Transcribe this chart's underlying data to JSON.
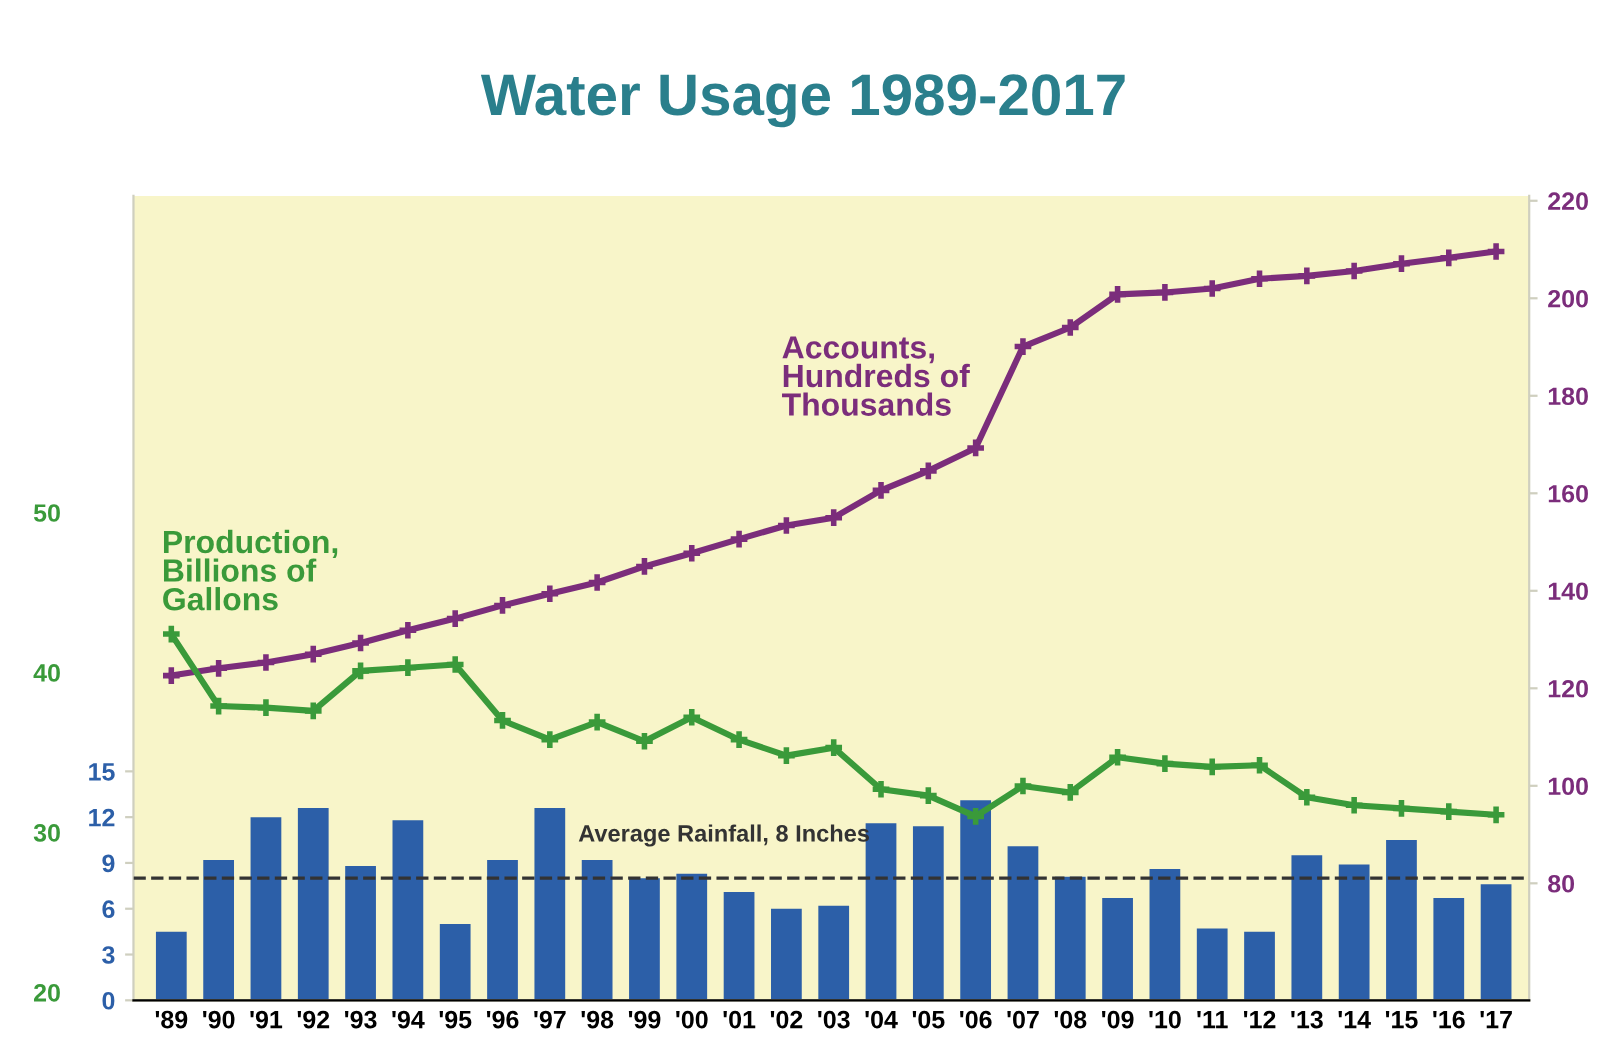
{
  "chart_data": {
    "type": "bar",
    "title": "Water Usage 1989-2017",
    "categories": [
      "'89",
      "'90",
      "'91",
      "'92",
      "'93",
      "'94",
      "'95",
      "'96",
      "'97",
      "'98",
      "'99",
      "'00",
      "'01",
      "'02",
      "'03",
      "'04",
      "'05",
      "'06",
      "'07",
      "'08",
      "'09",
      "'10",
      "'11",
      "'12",
      "'13",
      "'14",
      "'15",
      "'16",
      "'17"
    ],
    "series": [
      {
        "color": "#2c5fa8",
        "values": [
          4.5,
          9.2,
          12.0,
          12.6,
          8.8,
          11.8,
          5.0,
          9.2,
          12.6,
          9.2,
          8.0,
          8.3,
          7.1,
          6.0,
          6.2,
          11.6,
          11.4,
          13.1,
          10.1,
          8.1,
          6.7,
          8.6,
          4.7,
          4.5,
          9.5,
          8.9,
          10.5,
          6.7,
          7.6
        ]
      },
      {
        "type": "line",
        "name": "Production, Billions of Gallons",
        "axis": "y3",
        "color": "#3a9a3a",
        "marker": "cross",
        "values": [
          42.4,
          37.9,
          37.8,
          37.6,
          40.1,
          40.3,
          40.5,
          37.0,
          35.8,
          36.9,
          35.7,
          37.2,
          35.8,
          34.8,
          35.3,
          32.7,
          32.3,
          31.0,
          32.9,
          32.5,
          34.7,
          34.3,
          34.1,
          34.2,
          32.2,
          31.7,
          31.5,
          31.3,
          31.1
        ]
      },
      {
        "type": "line",
        "name": "Accounts, Hundreds of Thousands",
        "axis": "y2",
        "color": "#7b2d7b",
        "marker": "cross",
        "values": [
          122.6,
          124.1,
          125.3,
          127.0,
          129.3,
          131.9,
          134.3,
          137.0,
          139.4,
          141.7,
          145.0,
          147.7,
          150.6,
          153.4,
          155.0,
          160.6,
          164.6,
          169.3,
          190.1,
          194.0,
          200.8,
          201.2,
          202.0,
          204.0,
          204.6,
          205.6,
          207.1,
          208.3,
          209.6
        ]
      }
    ],
    "ylim": [
      0,
      52.7
    ],
    "yticks": [
      0,
      3,
      6,
      9,
      12,
      15
    ],
    "y2lim": [
      56,
      221
    ],
    "y2ticks": [
      80,
      100,
      120,
      140,
      160,
      180,
      200,
      220
    ],
    "y3lim": [
      19.5,
      69.8
    ],
    "y3ticks": [
      20,
      30,
      40,
      50
    ],
    "ref_lines": [
      {
        "axis": "y",
        "value": 8,
        "label": "Average Rainfall, 8 Inches",
        "color": "#333333",
        "line_style": "dashed"
      }
    ],
    "grid": false,
    "legend": false
  }
}
